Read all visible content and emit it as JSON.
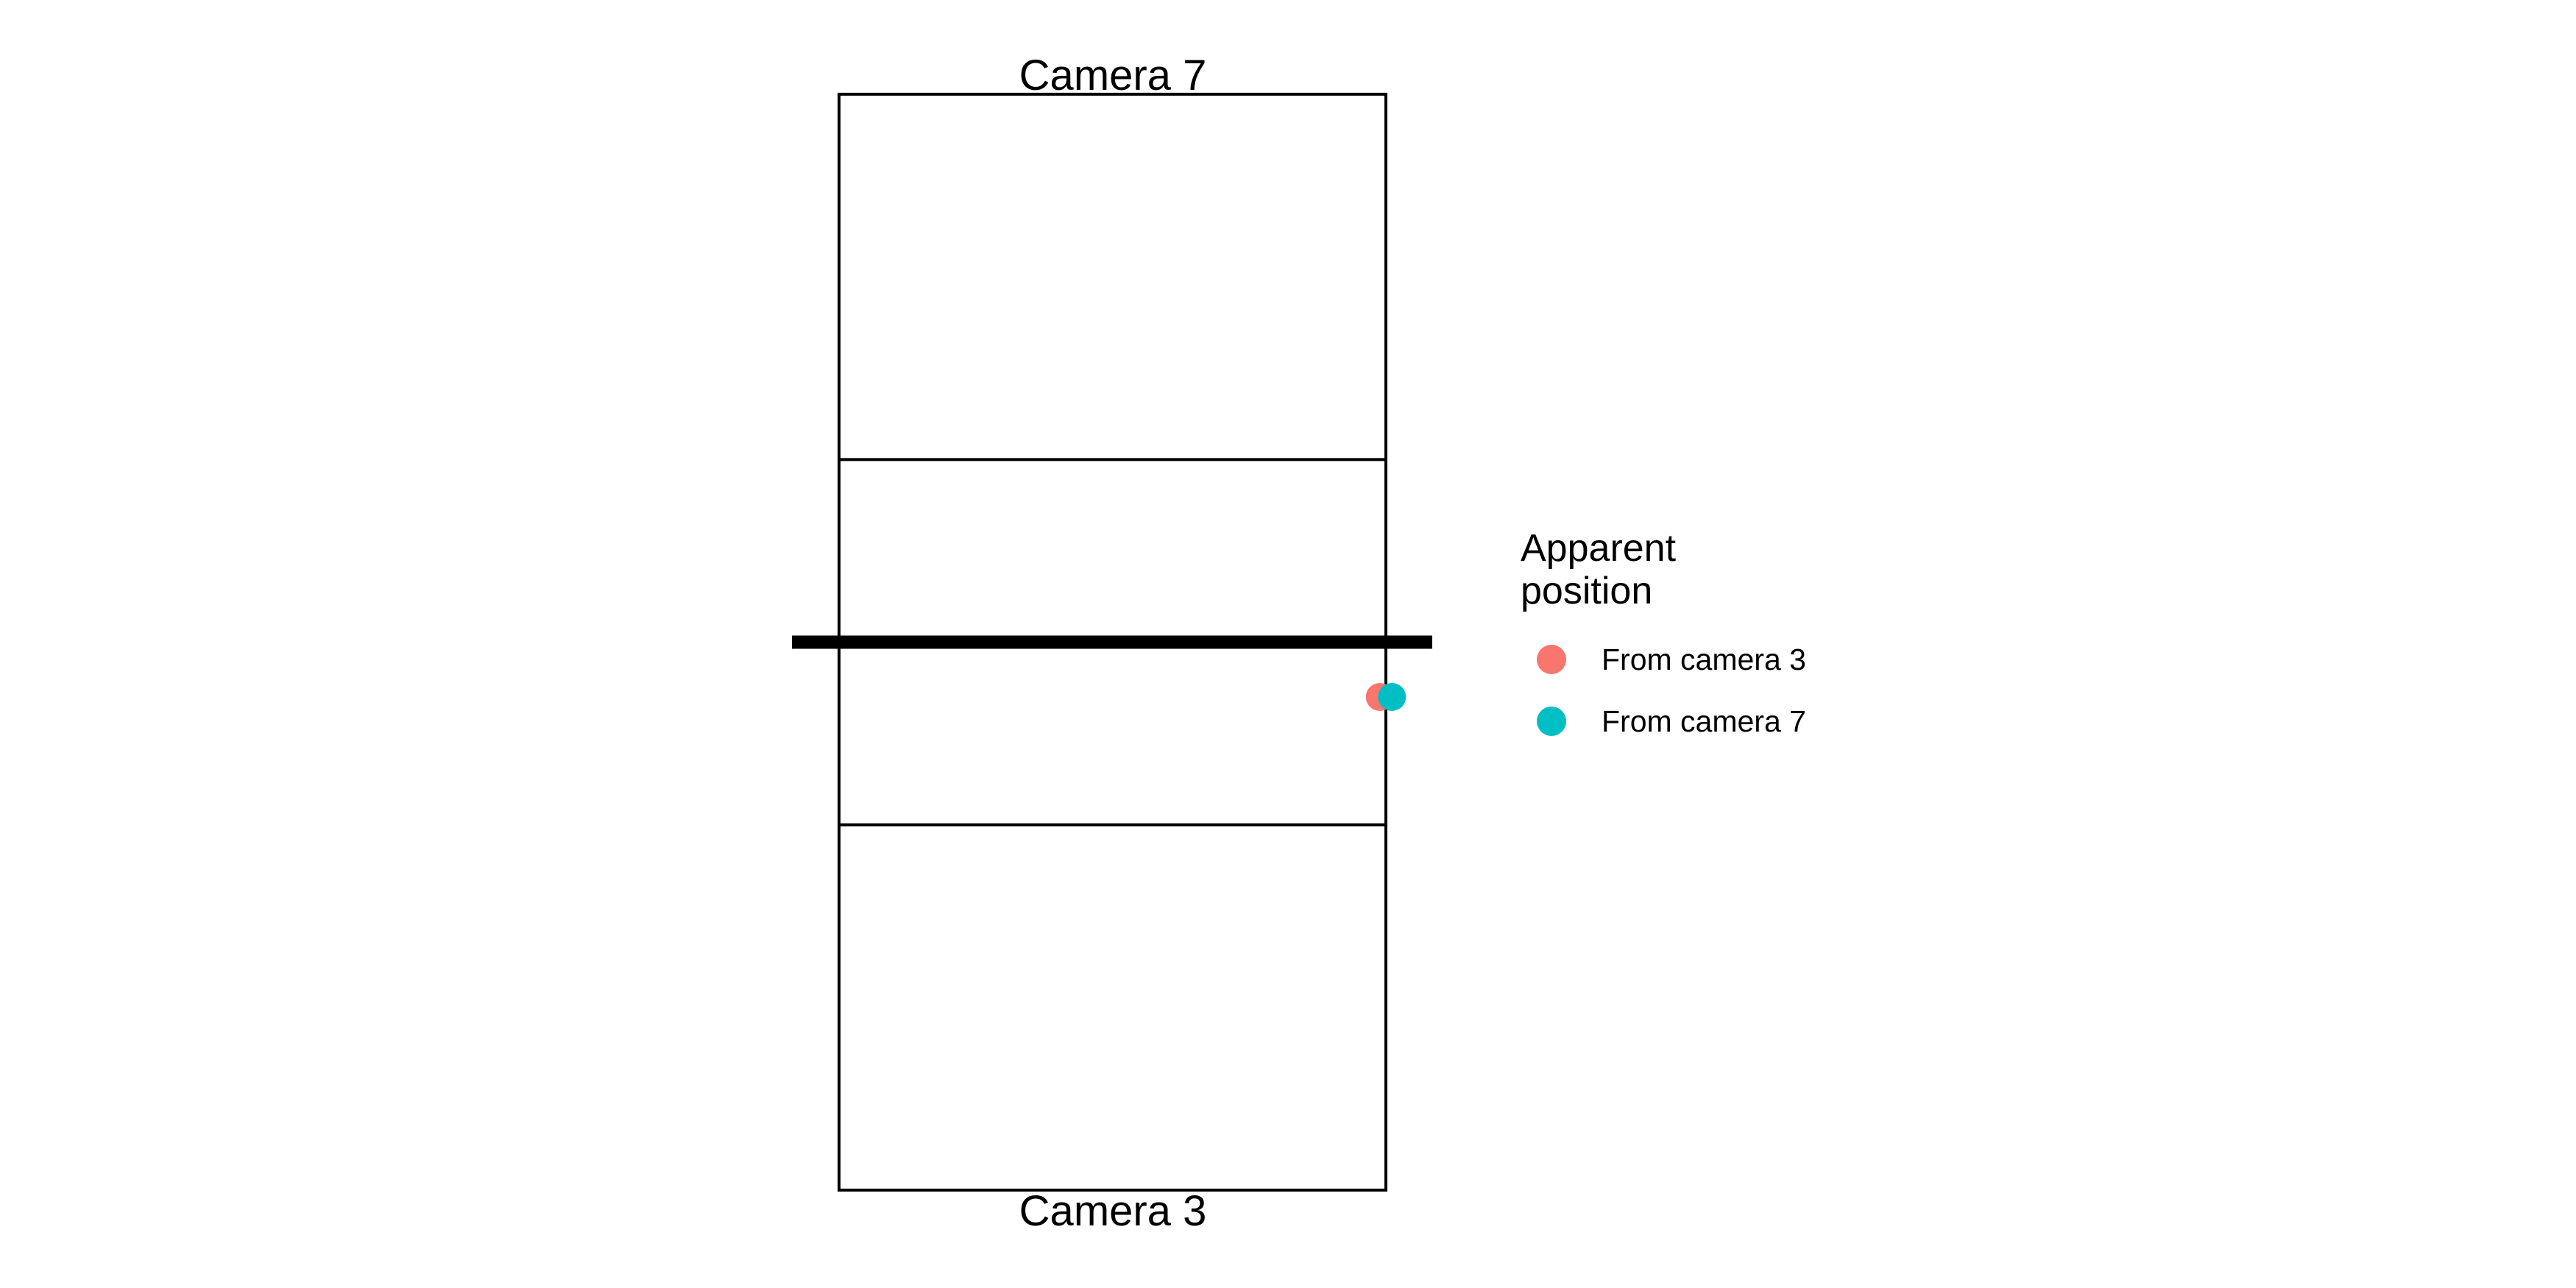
{
  "labels": {
    "top_camera": "Camera 7",
    "bottom_camera": "Camera 3"
  },
  "legend": {
    "title": "Apparent position",
    "items": [
      {
        "label": "From camera 3",
        "color": "#F8766D"
      },
      {
        "label": "From camera 7",
        "color": "#00BFC4"
      }
    ]
  },
  "court": {
    "line_color": "#000000",
    "net_color": "#000000"
  },
  "points": [
    {
      "series": "From camera 3",
      "x": 4.4,
      "y": -0.9,
      "color": "#F8766D"
    },
    {
      "series": "From camera 7",
      "x": 4.6,
      "y": -0.9,
      "color": "#00BFC4"
    }
  ],
  "court_units": {
    "x_range": [
      -4.5,
      4.5
    ],
    "y_range": [
      -9,
      9
    ],
    "attack_line_y": 3,
    "net_y": 0
  }
}
